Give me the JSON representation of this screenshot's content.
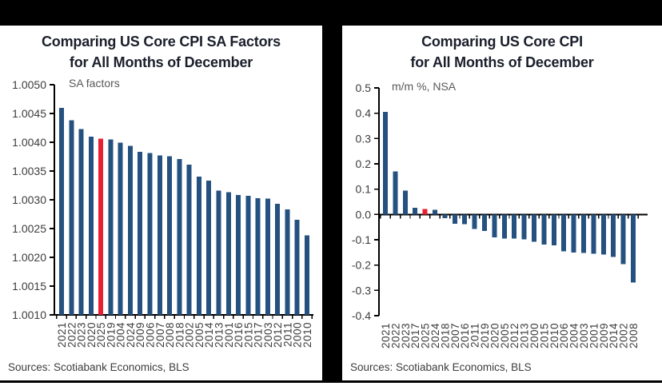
{
  "page": {
    "background": "#ffffff",
    "frame_color": "#000000"
  },
  "panels": [
    {
      "title_line1": "Comparing US Core CPI SA Factors",
      "title_line2": "for All Months of December",
      "sources": "Sources: Scotiabank Economics, BLS"
    },
    {
      "title_line1": "Comparing US Core CPI",
      "title_line2": "for All Months of December",
      "sources": "Sources: Scotiabank Economics, BLS"
    }
  ],
  "chart_data": [
    {
      "type": "bar",
      "title": "Comparing US Core CPI SA Factors for All Months of December",
      "inner_label": "SA factors",
      "categories": [
        "2021",
        "2022",
        "2023",
        "2020",
        "2025",
        "2019",
        "2004",
        "2024",
        "2009",
        "2006",
        "2007",
        "2008",
        "2018",
        "2002",
        "2005",
        "2014",
        "2013",
        "2001",
        "2016",
        "2015",
        "2017",
        "2003",
        "2012",
        "2011",
        "2000",
        "2010"
      ],
      "values": [
        1.0046,
        1.00438,
        1.00423,
        1.0041,
        1.00406,
        1.00405,
        1.00399,
        1.00394,
        1.00383,
        1.00381,
        1.00377,
        1.00376,
        1.00371,
        1.00361,
        1.0034,
        1.00333,
        1.00316,
        1.00313,
        1.00308,
        1.00307,
        1.00303,
        1.00302,
        1.00293,
        1.00283,
        1.00265,
        1.00238
      ],
      "highlight_category": "2025",
      "highlight_index": 4,
      "bar_color": "#24517F",
      "highlight_color": "#EA1F2F",
      "ylim": [
        1.001,
        1.005
      ],
      "baseline": 1.001,
      "yticks": [
        "1.0050",
        "1.0045",
        "1.0040",
        "1.0035",
        "1.0030",
        "1.0025",
        "1.0020",
        "1.0015",
        "1.0010"
      ],
      "grid": false,
      "legend": "none",
      "sources": "Sources: Scotiabank Economics, BLS"
    },
    {
      "type": "bar",
      "title": "Comparing US Core CPI for All Months of December",
      "inner_label": "m/m %, NSA",
      "categories": [
        "2021",
        "2022",
        "2023",
        "2017",
        "2025",
        "2024",
        "2018",
        "2007",
        "2016",
        "2011",
        "2019",
        "2020",
        "2005",
        "2012",
        "2013",
        "2000",
        "2015",
        "2010",
        "2006",
        "2004",
        "2003",
        "2001",
        "2009",
        "2014",
        "2002",
        "2008"
      ],
      "values": [
        0.405,
        0.17,
        0.095,
        0.026,
        0.022,
        0.019,
        -0.015,
        -0.037,
        -0.038,
        -0.058,
        -0.065,
        -0.091,
        -0.095,
        -0.096,
        -0.098,
        -0.108,
        -0.119,
        -0.122,
        -0.146,
        -0.15,
        -0.152,
        -0.156,
        -0.158,
        -0.168,
        -0.197,
        -0.269
      ],
      "highlight_category": "2025",
      "highlight_index": 4,
      "bar_color": "#24517F",
      "highlight_color": "#EA1F2F",
      "ylim": [
        -0.4,
        0.5
      ],
      "baseline": 0,
      "yticks": [
        "0.5",
        "0.4",
        "0.3",
        "0.2",
        "0.1",
        "0.0",
        "-0.1",
        "-0.2",
        "-0.3",
        "-0.4"
      ],
      "grid": false,
      "legend": "none",
      "sources": "Sources: Scotiabank Economics, BLS"
    }
  ]
}
